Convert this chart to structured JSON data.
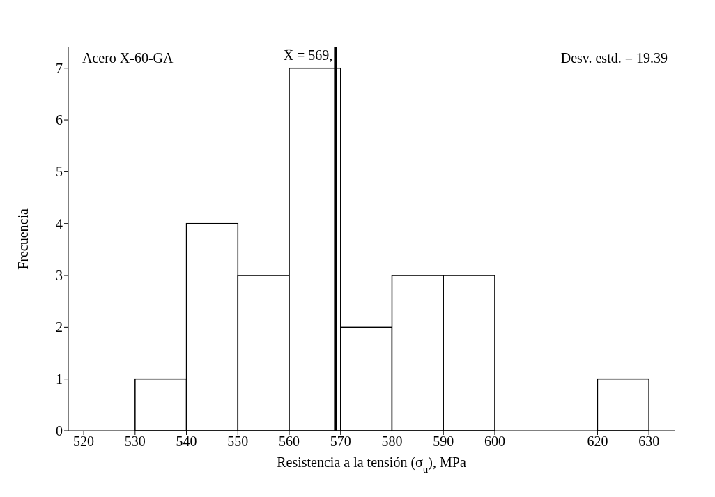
{
  "chart_data": {
    "type": "histogram",
    "xlabel": "Resistencia a la tensión  (σ$_{u}$),  MPa",
    "ylabel": "Frecuencia",
    "bins": [
      530,
      540,
      550,
      560,
      570,
      580,
      590,
      600,
      620,
      630
    ],
    "values": [
      1,
      4,
      3,
      7,
      2,
      3,
      3,
      0,
      1
    ],
    "color": "#ffffff",
    "xlim": [
      517,
      635
    ],
    "xticks": [
      520,
      530,
      540,
      550,
      560,
      570,
      580,
      590,
      600,
      620,
      630
    ],
    "ylim": [
      0,
      7.4
    ],
    "yticks": [
      0,
      1,
      2,
      3,
      4,
      5,
      6,
      7
    ],
    "ref_lines": [
      {
        "axis": "x",
        "value": 569,
        "label": "X̄ = 569,",
        "color": "#000000"
      }
    ],
    "annotations": [
      "Acero  X-60-GA",
      "Desv. estd. = 19.39"
    ]
  }
}
